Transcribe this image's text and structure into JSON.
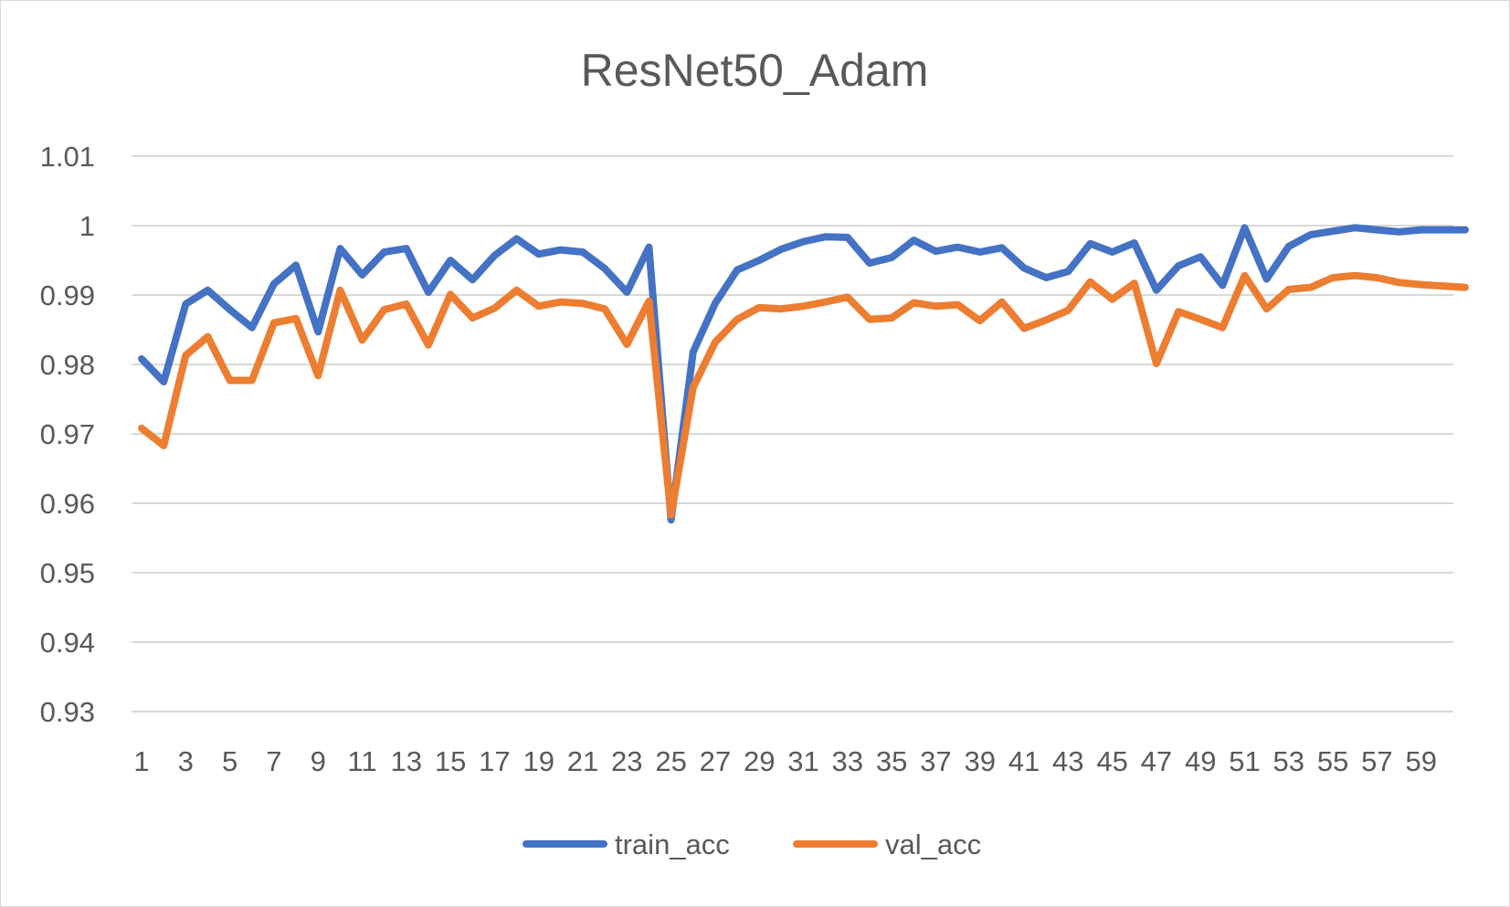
{
  "chart_data": {
    "type": "line",
    "title": "ResNet50_Adam",
    "xlabel": "",
    "ylabel": "",
    "ylim": [
      0.93,
      1.01
    ],
    "yticks": [
      "0.93",
      "0.94",
      "0.95",
      "0.96",
      "0.97",
      "0.98",
      "0.99",
      "1",
      "1.01"
    ],
    "xtick_labels": [
      "1",
      "3",
      "5",
      "7",
      "9",
      "11",
      "13",
      "15",
      "17",
      "19",
      "21",
      "23",
      "25",
      "27",
      "29",
      "31",
      "33",
      "35",
      "37",
      "39",
      "41",
      "43",
      "45",
      "47",
      "49",
      "51",
      "53",
      "55",
      "57",
      "59"
    ],
    "x": [
      1,
      2,
      3,
      4,
      5,
      6,
      7,
      8,
      9,
      10,
      11,
      12,
      13,
      14,
      15,
      16,
      17,
      18,
      19,
      20,
      21,
      22,
      23,
      24,
      25,
      26,
      27,
      28,
      29,
      30,
      31,
      32,
      33,
      34,
      35,
      36,
      37,
      38,
      39,
      40,
      41,
      42,
      43,
      44,
      45,
      46,
      47,
      48,
      49,
      50,
      51,
      52,
      53,
      54,
      55,
      56,
      57,
      58,
      59,
      60,
      61
    ],
    "grid": true,
    "legend_position": "bottom",
    "series": [
      {
        "name": "train_acc",
        "color": "#4472C4",
        "values": [
          0.9808,
          0.9775,
          0.9887,
          0.9907,
          0.9879,
          0.9853,
          0.9916,
          0.9943,
          0.9847,
          0.9967,
          0.9929,
          0.9962,
          0.9967,
          0.9904,
          0.995,
          0.9922,
          0.9957,
          0.9981,
          0.9959,
          0.9965,
          0.9962,
          0.9938,
          0.9904,
          0.9969,
          0.9576,
          0.9818,
          0.9888,
          0.9936,
          0.995,
          0.9966,
          0.9977,
          0.9984,
          0.9983,
          0.9946,
          0.9954,
          0.9979,
          0.9963,
          0.9969,
          0.9962,
          0.9968,
          0.9939,
          0.9925,
          0.9934,
          0.9974,
          0.9962,
          0.9975,
          0.9907,
          0.9942,
          0.9955,
          0.9914,
          0.9997,
          0.9923,
          0.997,
          0.9987,
          0.9992,
          0.9997,
          0.9994,
          0.9991,
          0.9994,
          0.9994,
          0.9994
        ]
      },
      {
        "name": "val_acc",
        "color": "#ED7D31",
        "values": [
          0.9708,
          0.9683,
          0.9813,
          0.984,
          0.9777,
          0.9777,
          0.986,
          0.9866,
          0.9784,
          0.9907,
          0.9835,
          0.9879,
          0.9887,
          0.9828,
          0.9901,
          0.9867,
          0.9881,
          0.9907,
          0.9884,
          0.989,
          0.9888,
          0.988,
          0.9829,
          0.9891,
          0.9583,
          0.9767,
          0.9832,
          0.9865,
          0.9882,
          0.988,
          0.9884,
          0.989,
          0.9897,
          0.9865,
          0.9867,
          0.9889,
          0.9884,
          0.9886,
          0.9863,
          0.989,
          0.9852,
          0.9864,
          0.9878,
          0.9919,
          0.9894,
          0.9917,
          0.9801,
          0.9876,
          0.9865,
          0.9853,
          0.9928,
          0.988,
          0.9908,
          0.9911,
          0.9925,
          0.9928,
          0.9925,
          0.9918,
          0.9915,
          0.9913,
          0.9911
        ]
      }
    ]
  }
}
